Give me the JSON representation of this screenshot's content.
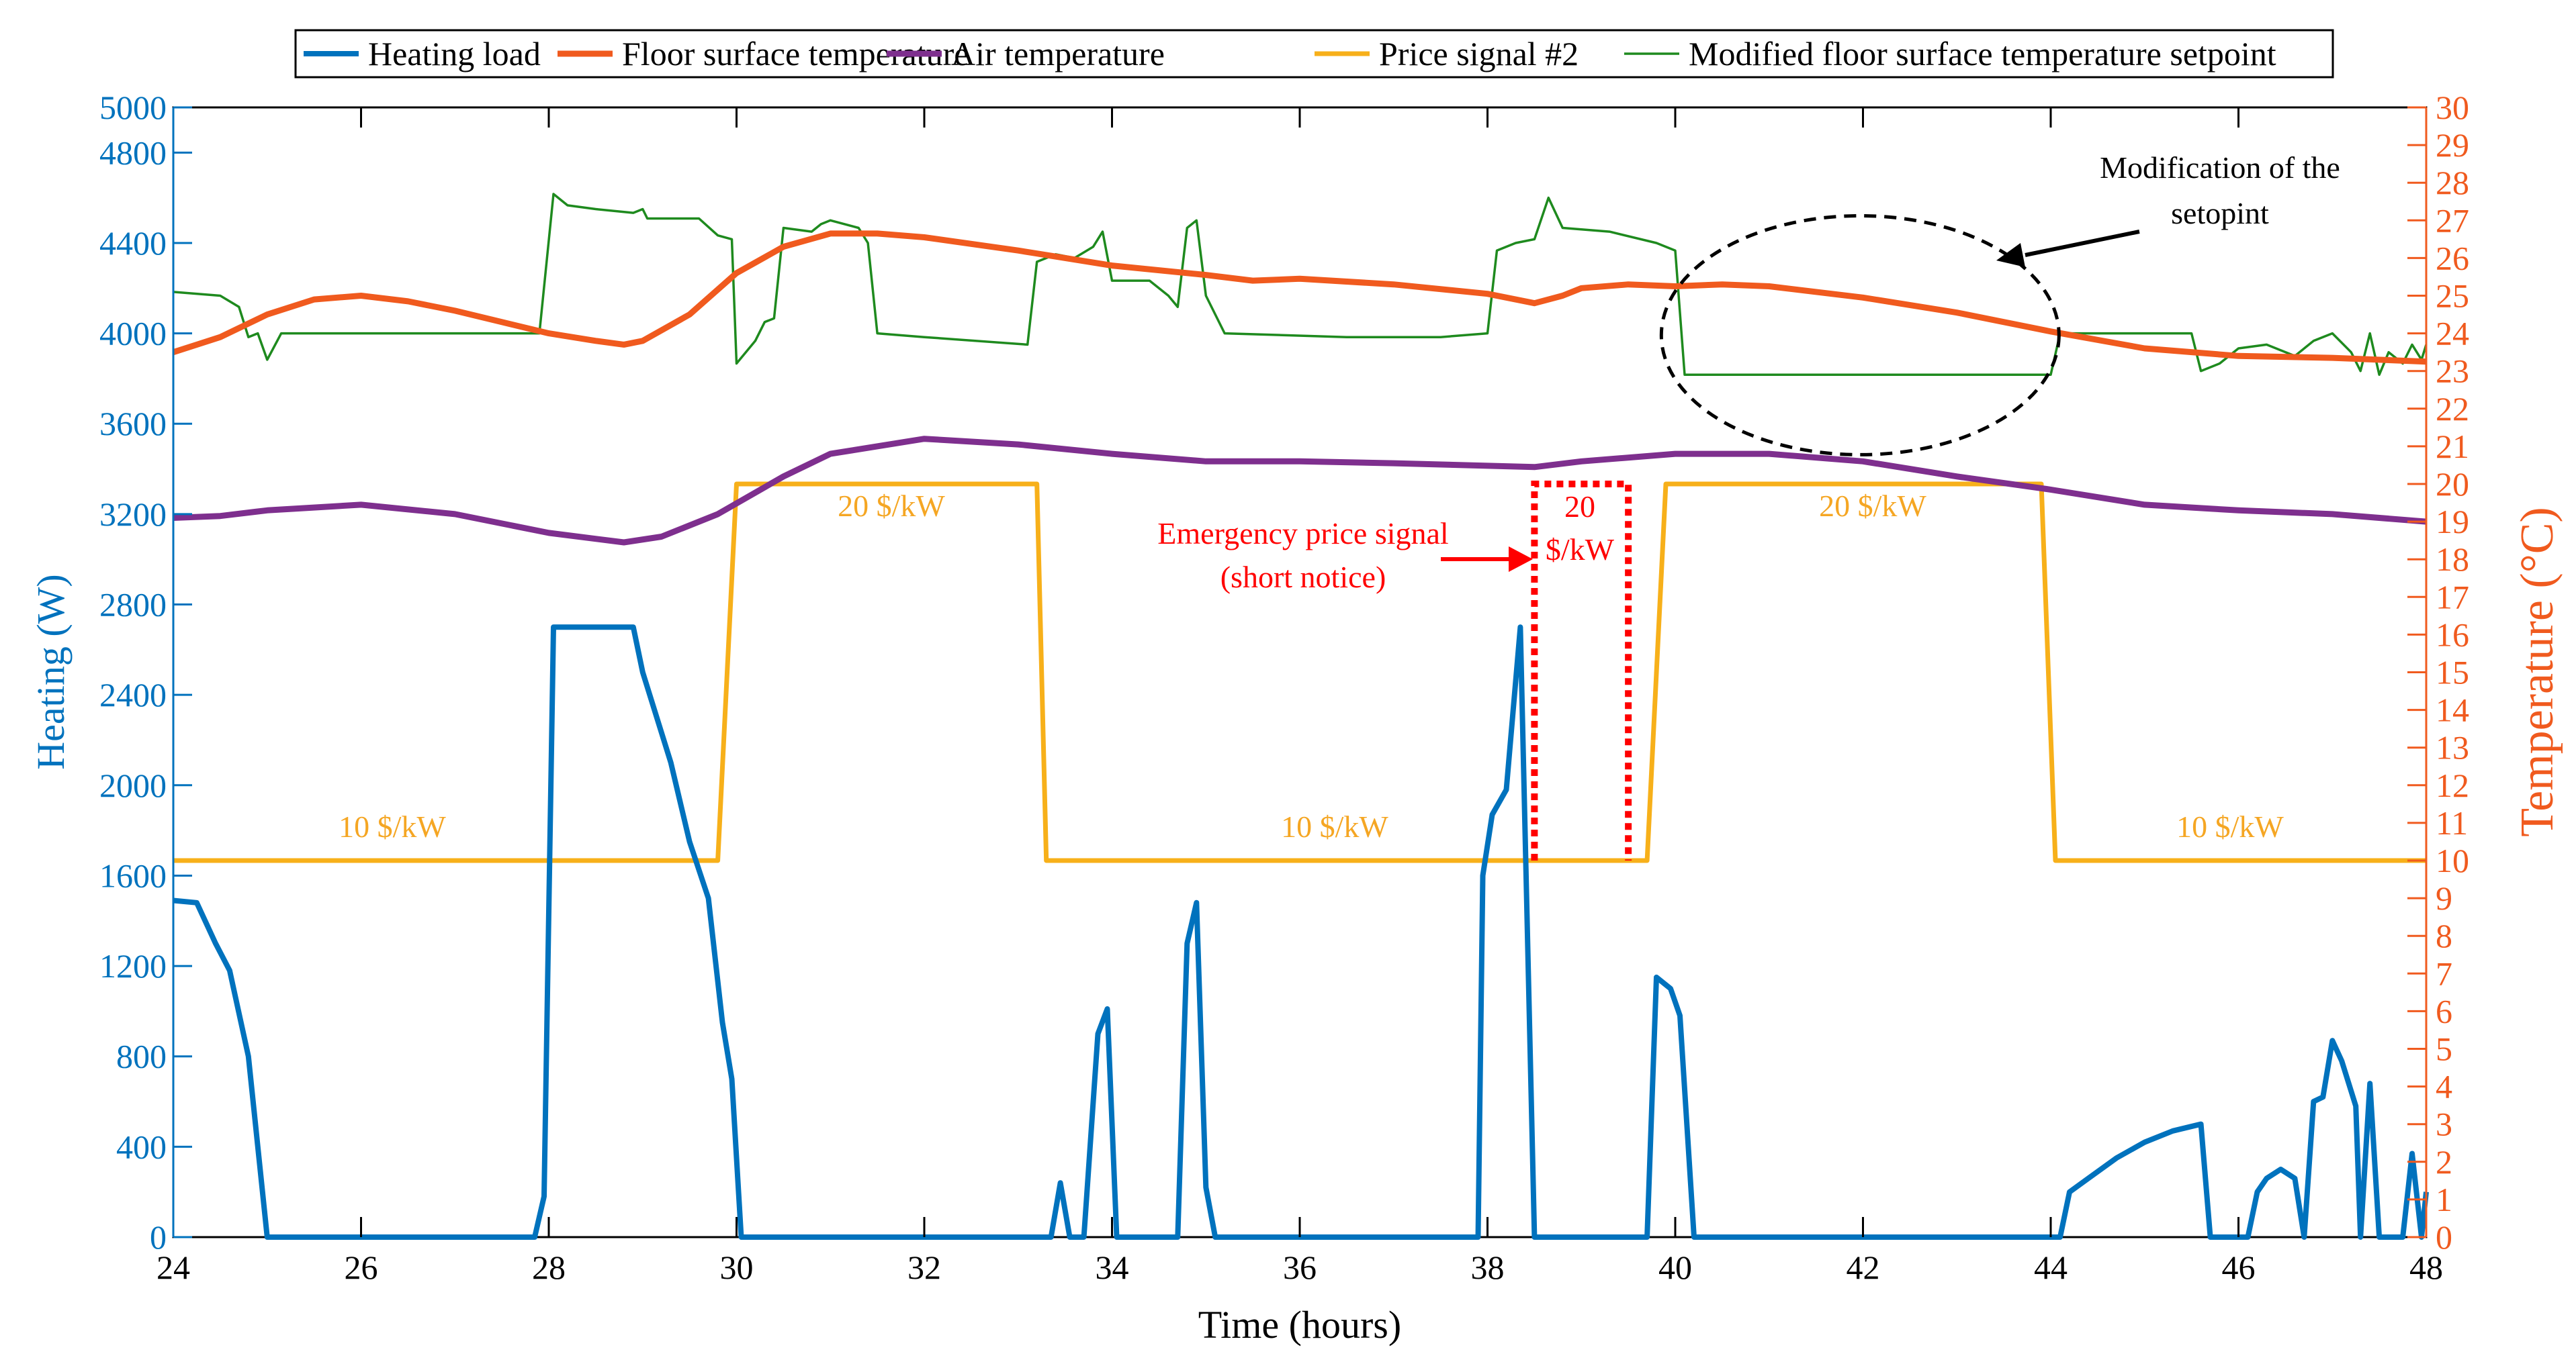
{
  "chart_data": {
    "type": "line",
    "legend": {
      "placement": "top-center",
      "entries": [
        {
          "label": "Heating load",
          "color": "#0072BD"
        },
        {
          "label": "Floor surface temperature",
          "color": "#F05A1E"
        },
        {
          "label": "Air temperature",
          "color": "#7E2F8E"
        },
        {
          "label": "Price signal #2",
          "color": "#F7B01A"
        },
        {
          "label": "Modified floor surface temperature setpoint",
          "color": "#1E8A1E"
        }
      ]
    },
    "xlabel": "Time (hours)",
    "ylabel_left": "Heating (W)",
    "ylabel_right": "Temperature (°C)",
    "xlim": [
      24,
      48
    ],
    "ylim_left": [
      0,
      5000
    ],
    "ylim_right": [
      0,
      30
    ],
    "x_ticks": [
      "24",
      "26",
      "28",
      "30",
      "32",
      "34",
      "36",
      "38",
      "40",
      "42",
      "44",
      "46",
      "48"
    ],
    "y_left_ticks": [
      "0",
      "400",
      "800",
      "1200",
      "1600",
      "2000",
      "2400",
      "2800",
      "3200",
      "3600",
      "4000",
      "4400",
      "4800",
      "5000"
    ],
    "y_right_ticks": [
      "0",
      "1",
      "2",
      "3",
      "4",
      "5",
      "6",
      "7",
      "8",
      "9",
      "10",
      "11",
      "12",
      "13",
      "14",
      "15",
      "16",
      "17",
      "18",
      "19",
      "20",
      "21",
      "22",
      "23",
      "24",
      "25",
      "26",
      "27",
      "28",
      "29",
      "30"
    ],
    "series": [
      {
        "name": "Heating load",
        "axis": "left",
        "color": "#0072BD",
        "points": [
          [
            24,
            1490
          ],
          [
            24.25,
            1480
          ],
          [
            24.45,
            1300
          ],
          [
            24.6,
            1180
          ],
          [
            24.8,
            800
          ],
          [
            25.0,
            0
          ],
          [
            27.85,
            0
          ],
          [
            27.95,
            180
          ],
          [
            28.05,
            2700
          ],
          [
            28.9,
            2700
          ],
          [
            29.0,
            2500
          ],
          [
            29.3,
            2100
          ],
          [
            29.5,
            1750
          ],
          [
            29.7,
            1500
          ],
          [
            29.85,
            950
          ],
          [
            29.95,
            700
          ],
          [
            30.05,
            0
          ],
          [
            33.35,
            0
          ],
          [
            33.45,
            240
          ],
          [
            33.55,
            0
          ],
          [
            33.7,
            0
          ],
          [
            33.85,
            900
          ],
          [
            33.95,
            1010
          ],
          [
            34.05,
            0
          ],
          [
            34.7,
            0
          ],
          [
            34.8,
            1300
          ],
          [
            34.9,
            1480
          ],
          [
            35.0,
            220
          ],
          [
            35.1,
            0
          ],
          [
            37.9,
            0
          ],
          [
            37.95,
            1600
          ],
          [
            38.05,
            1870
          ],
          [
            38.2,
            1980
          ],
          [
            38.35,
            2700
          ],
          [
            38.5,
            0
          ],
          [
            39.7,
            0
          ],
          [
            39.8,
            1150
          ],
          [
            39.95,
            1100
          ],
          [
            40.05,
            980
          ],
          [
            40.2,
            0
          ],
          [
            44.1,
            0
          ],
          [
            44.2,
            200
          ],
          [
            44.4,
            260
          ],
          [
            44.7,
            350
          ],
          [
            45.0,
            420
          ],
          [
            45.3,
            470
          ],
          [
            45.6,
            500
          ],
          [
            45.7,
            0
          ],
          [
            46.1,
            0
          ],
          [
            46.2,
            200
          ],
          [
            46.3,
            260
          ],
          [
            46.45,
            300
          ],
          [
            46.6,
            260
          ],
          [
            46.7,
            0
          ],
          [
            46.8,
            600
          ],
          [
            46.9,
            620
          ],
          [
            47.0,
            870
          ],
          [
            47.1,
            780
          ],
          [
            47.25,
            580
          ],
          [
            47.3,
            0
          ],
          [
            47.4,
            680
          ],
          [
            47.5,
            0
          ],
          [
            47.75,
            0
          ],
          [
            47.85,
            370
          ],
          [
            47.95,
            0
          ],
          [
            48,
            200
          ]
        ]
      },
      {
        "name": "Floor surface temperature",
        "axis": "right",
        "color": "#F05A1E",
        "points": [
          [
            24,
            23.5
          ],
          [
            24.5,
            23.9
          ],
          [
            25,
            24.5
          ],
          [
            25.5,
            24.9
          ],
          [
            26,
            25
          ],
          [
            26.5,
            24.85
          ],
          [
            27,
            24.6
          ],
          [
            27.5,
            24.3
          ],
          [
            28,
            24
          ],
          [
            28.5,
            23.8
          ],
          [
            28.8,
            23.7
          ],
          [
            29,
            23.8
          ],
          [
            29.5,
            24.5
          ],
          [
            30,
            25.6
          ],
          [
            30.5,
            26.3
          ],
          [
            31,
            26.65
          ],
          [
            31.5,
            26.65
          ],
          [
            32,
            26.55
          ],
          [
            33,
            26.2
          ],
          [
            34,
            25.8
          ],
          [
            35,
            25.55
          ],
          [
            35.5,
            25.4
          ],
          [
            36,
            25.45
          ],
          [
            37,
            25.3
          ],
          [
            38,
            25.05
          ],
          [
            38.5,
            24.8
          ],
          [
            38.8,
            25
          ],
          [
            39,
            25.2
          ],
          [
            39.5,
            25.3
          ],
          [
            40,
            25.25
          ],
          [
            40.5,
            25.3
          ],
          [
            41,
            25.25
          ],
          [
            42,
            24.95
          ],
          [
            43,
            24.55
          ],
          [
            44,
            24.05
          ],
          [
            45,
            23.6
          ],
          [
            46,
            23.4
          ],
          [
            47,
            23.35
          ],
          [
            48,
            23.25
          ]
        ]
      },
      {
        "name": "Air temperature",
        "axis": "right",
        "color": "#7E2F8E",
        "points": [
          [
            24,
            19.1
          ],
          [
            24.5,
            19.15
          ],
          [
            25,
            19.3
          ],
          [
            26,
            19.45
          ],
          [
            27,
            19.2
          ],
          [
            28,
            18.7
          ],
          [
            28.8,
            18.45
          ],
          [
            29.2,
            18.6
          ],
          [
            29.8,
            19.2
          ],
          [
            30.5,
            20.2
          ],
          [
            31,
            20.8
          ],
          [
            32,
            21.2
          ],
          [
            33,
            21.05
          ],
          [
            34,
            20.8
          ],
          [
            35,
            20.6
          ],
          [
            36,
            20.6
          ],
          [
            37,
            20.55
          ],
          [
            38.5,
            20.45
          ],
          [
            39,
            20.6
          ],
          [
            40,
            20.8
          ],
          [
            41,
            20.8
          ],
          [
            42,
            20.6
          ],
          [
            43,
            20.2
          ],
          [
            44,
            19.85
          ],
          [
            45,
            19.45
          ],
          [
            46,
            19.3
          ],
          [
            47,
            19.2
          ],
          [
            48,
            19.0
          ]
        ]
      },
      {
        "name": "Price signal #2",
        "axis": "right",
        "color": "#F7B01A",
        "points": [
          [
            24,
            10
          ],
          [
            29.8,
            10
          ],
          [
            30.0,
            20
          ],
          [
            33.2,
            20
          ],
          [
            33.3,
            10
          ],
          [
            39.7,
            10
          ],
          [
            39.9,
            20
          ],
          [
            43.9,
            20
          ],
          [
            44.05,
            10
          ],
          [
            48,
            10
          ]
        ]
      },
      {
        "name": "Modified floor surface temperature setpoint",
        "axis": "right",
        "color": "#1E8A1E",
        "points": [
          [
            24,
            25.1
          ],
          [
            24.5,
            25
          ],
          [
            24.7,
            24.7
          ],
          [
            24.8,
            23.9
          ],
          [
            24.9,
            24
          ],
          [
            25.0,
            23.3
          ],
          [
            25.15,
            24
          ],
          [
            27.7,
            24
          ],
          [
            27.9,
            24
          ],
          [
            28.05,
            27.7
          ],
          [
            28.2,
            27.4
          ],
          [
            28.5,
            27.3
          ],
          [
            28.9,
            27.2
          ],
          [
            29.0,
            27.3
          ],
          [
            29.05,
            27.05
          ],
          [
            29.3,
            27.05
          ],
          [
            29.6,
            27.05
          ],
          [
            29.8,
            26.6
          ],
          [
            29.95,
            26.5
          ],
          [
            30.0,
            23.2
          ],
          [
            30.2,
            23.8
          ],
          [
            30.3,
            24.3
          ],
          [
            30.4,
            24.4
          ],
          [
            30.5,
            26.8
          ],
          [
            30.8,
            26.7
          ],
          [
            30.9,
            26.9
          ],
          [
            31.0,
            27.0
          ],
          [
            31.3,
            26.8
          ],
          [
            31.4,
            26.4
          ],
          [
            31.5,
            24.0
          ],
          [
            32.0,
            23.9
          ],
          [
            33.1,
            23.7
          ],
          [
            33.2,
            25.9
          ],
          [
            33.4,
            26.1
          ],
          [
            33.6,
            26.0
          ],
          [
            33.8,
            26.3
          ],
          [
            33.9,
            26.7
          ],
          [
            34.0,
            25.4
          ],
          [
            34.4,
            25.4
          ],
          [
            34.6,
            25.0
          ],
          [
            34.7,
            24.7
          ],
          [
            34.8,
            26.8
          ],
          [
            34.9,
            27.0
          ],
          [
            35.0,
            25.0
          ],
          [
            35.2,
            24.0
          ],
          [
            36.5,
            23.9
          ],
          [
            37.5,
            23.9
          ],
          [
            38.0,
            24.0
          ],
          [
            38.1,
            26.2
          ],
          [
            38.3,
            26.4
          ],
          [
            38.5,
            26.5
          ],
          [
            38.65,
            27.6
          ],
          [
            38.8,
            26.8
          ],
          [
            39.3,
            26.7
          ],
          [
            39.8,
            26.4
          ],
          [
            40.0,
            26.2
          ],
          [
            40.1,
            22.9
          ],
          [
            44.0,
            22.9
          ],
          [
            44.1,
            24.0
          ],
          [
            45.5,
            24.0
          ],
          [
            45.6,
            23.0
          ],
          [
            45.8,
            23.2
          ],
          [
            46.0,
            23.6
          ],
          [
            46.3,
            23.7
          ],
          [
            46.6,
            23.4
          ],
          [
            46.8,
            23.8
          ],
          [
            47.0,
            24.0
          ],
          [
            47.2,
            23.5
          ],
          [
            47.3,
            23.0
          ],
          [
            47.4,
            24.0
          ],
          [
            47.5,
            22.9
          ],
          [
            47.6,
            23.5
          ],
          [
            47.75,
            23.2
          ],
          [
            47.85,
            23.7
          ],
          [
            47.95,
            23.3
          ],
          [
            48.0,
            23.7
          ]
        ]
      }
    ],
    "emergency_signal": {
      "x_start": 38.5,
      "x_end": 39.5,
      "level": 20,
      "color": "#FF0000"
    },
    "ellipse_center": [
      41.97,
      23.95
    ],
    "annotations": {
      "price_low_1": "10 $/kW",
      "price_high_1": "20 $/kW",
      "price_low_2": "10 $/kW",
      "emergency_value": "20",
      "emergency_unit": "$/kW",
      "price_high_2": "20 $/kW",
      "price_low_3": "10 $/kW",
      "emergency_label_1": "Emergency price signal",
      "emergency_label_2": "(short notice)",
      "modification_label_1": "Modification of the",
      "modification_label_2": "setopint"
    },
    "annotation_colors": {
      "price": "#F5A623",
      "emergency": "#FF0000",
      "modification": "#000000"
    }
  }
}
